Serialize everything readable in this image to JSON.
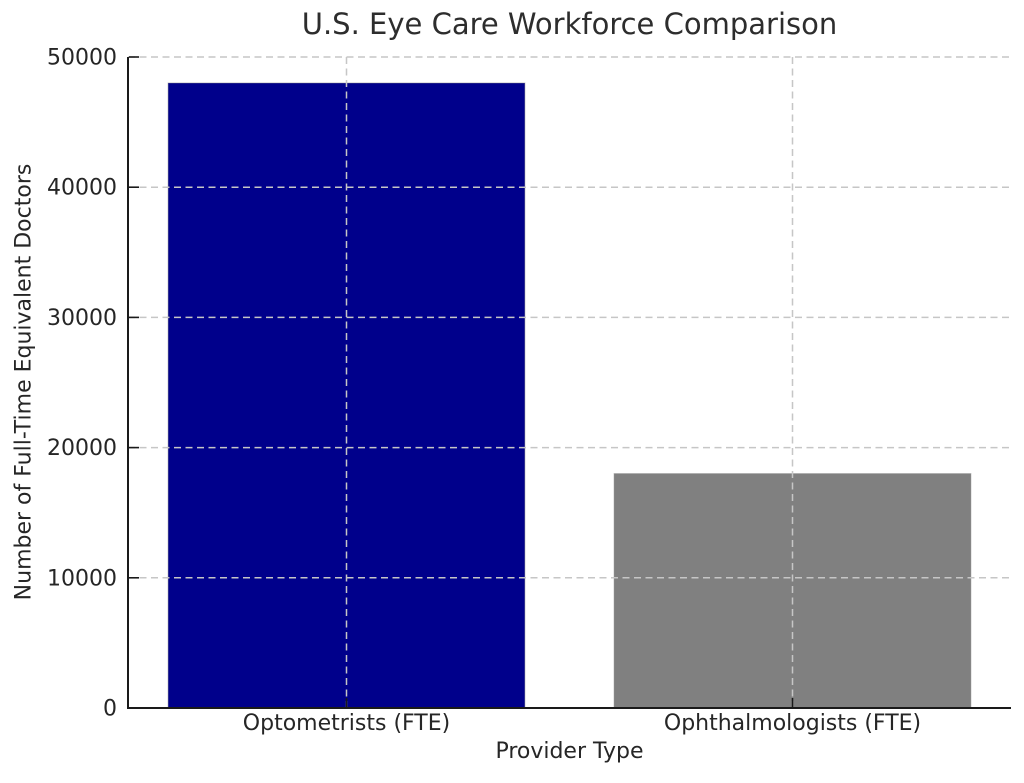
{
  "chart_data": {
    "type": "bar",
    "title": "U.S. Eye Care Workforce Comparison",
    "xlabel": "Provider Type",
    "ylabel": "Number of Full-Time Equivalent Doctors",
    "categories": [
      "Optometrists (FTE)",
      "Ophthalmologists (FTE)"
    ],
    "values": [
      48000,
      18000
    ],
    "bar_colors": [
      "#00008B",
      "#808080"
    ],
    "bar_edge_color": "rgba(128,128,128,0.45)",
    "ylim": [
      0,
      50000
    ],
    "yticks": [
      0,
      10000,
      20000,
      30000,
      40000,
      50000
    ],
    "ytick_labels": [
      "0",
      "10000",
      "20000",
      "30000",
      "40000",
      "50000"
    ],
    "grid": {
      "visible": true,
      "style": "dashed",
      "color": "#c6c6c6",
      "horizontal": true,
      "vertical_at_bar_centers": true,
      "drawn_above_bars": true
    },
    "spines": {
      "left": true,
      "bottom": true,
      "top": false,
      "right": false
    },
    "tick_direction": "in",
    "axis_color": "#1a1a1a",
    "text_color": "#262626",
    "background_color": "#ffffff",
    "legend": "none"
  }
}
